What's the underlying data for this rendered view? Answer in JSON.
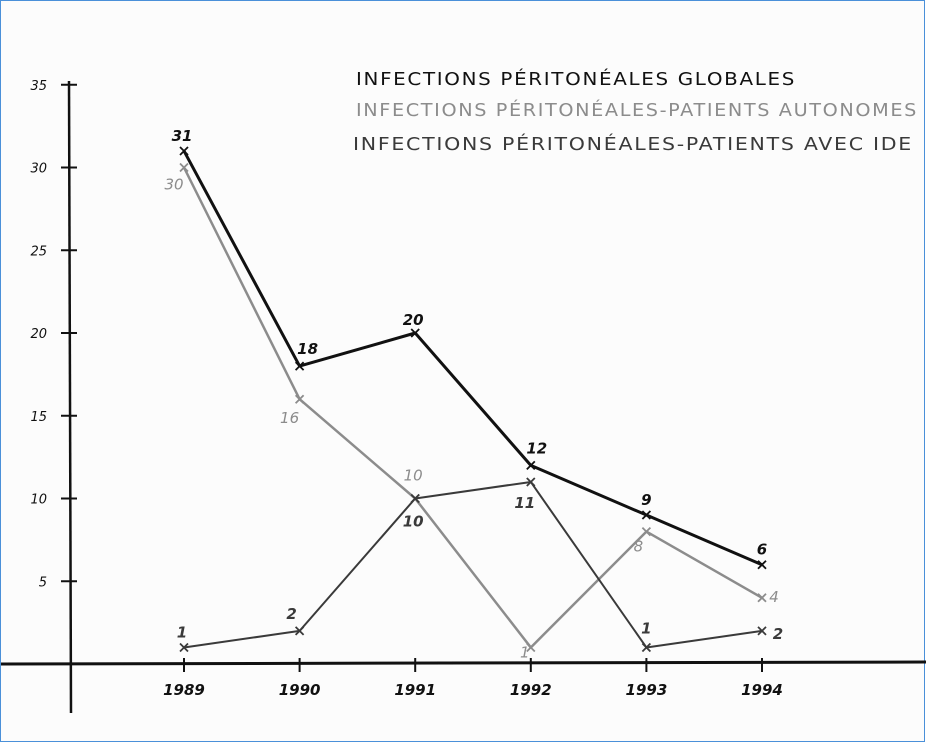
{
  "chart_data": {
    "type": "line",
    "categories": [
      "1989",
      "1990",
      "1991",
      "1992",
      "1993",
      "1994"
    ],
    "y_ticks": [
      "5",
      "10",
      "15",
      "20",
      "25",
      "30",
      "35"
    ],
    "ylim": [
      0,
      35
    ],
    "grid": false,
    "legend_position": "top-right",
    "series": [
      {
        "name": "INFECTIONS PÉRITONÉALES GLOBALES",
        "values": [
          31,
          18,
          20,
          12,
          9,
          6
        ],
        "labels": [
          "31",
          "18",
          "20",
          "12",
          "9",
          "6"
        ],
        "color": "#111111"
      },
      {
        "name": "INFECTIONS PÉRITONÉALES-PATIENTS AUTONOMES",
        "values": [
          30,
          16,
          10,
          1,
          8,
          4
        ],
        "labels": [
          "30",
          "16",
          "10",
          "1",
          "8",
          "4"
        ],
        "color": "#8c8c8c"
      },
      {
        "name": "INFECTIONS PÉRITONÉALES-PATIENTS AVEC IDE",
        "values": [
          1,
          2,
          10,
          11,
          1,
          2
        ],
        "labels": [
          "1",
          "2",
          "10",
          "11",
          "1",
          "2"
        ],
        "color": "#3a3a3a"
      }
    ]
  }
}
